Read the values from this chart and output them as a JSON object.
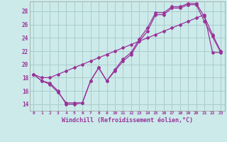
{
  "xlabel": "Windchill (Refroidissement éolien,°C)",
  "bg_color": "#cceaea",
  "grid_color": "#aacccc",
  "line_color": "#993399",
  "xlim": [
    -0.5,
    23.5
  ],
  "ylim": [
    13.0,
    29.5
  ],
  "yticks": [
    14,
    16,
    18,
    20,
    22,
    24,
    26,
    28
  ],
  "xticks": [
    0,
    1,
    2,
    3,
    4,
    5,
    6,
    7,
    8,
    9,
    10,
    11,
    12,
    13,
    14,
    15,
    16,
    17,
    18,
    19,
    20,
    21,
    22,
    23
  ],
  "series1_x": [
    0,
    1,
    2,
    3,
    4,
    5,
    6,
    7,
    8,
    9,
    10,
    11,
    12,
    13,
    14,
    15,
    16,
    17,
    18,
    19,
    20,
    21,
    22,
    23
  ],
  "series1_y": [
    18.5,
    17.5,
    17.0,
    15.8,
    14.2,
    14.2,
    14.2,
    17.5,
    19.5,
    17.5,
    19.0,
    20.5,
    21.5,
    23.5,
    25.0,
    27.5,
    27.5,
    28.5,
    28.5,
    29.0,
    29.0,
    26.5,
    24.2,
    21.8
  ],
  "series2_x": [
    0,
    1,
    2,
    3,
    4,
    5,
    6,
    7,
    8,
    9,
    10,
    11,
    12,
    13,
    14,
    15,
    16,
    17,
    18,
    19,
    20,
    21,
    22,
    23
  ],
  "series2_y": [
    18.5,
    17.5,
    17.2,
    16.0,
    14.0,
    14.0,
    14.2,
    17.5,
    19.5,
    17.5,
    19.2,
    20.8,
    21.8,
    23.8,
    25.5,
    27.8,
    27.8,
    28.7,
    28.7,
    29.2,
    29.2,
    27.2,
    24.5,
    22.0
  ],
  "series3_x": [
    0,
    1,
    2,
    3,
    4,
    5,
    6,
    7,
    8,
    9,
    10,
    11,
    12,
    13,
    14,
    15,
    16,
    17,
    18,
    19,
    20,
    21,
    22,
    23
  ],
  "series3_y": [
    18.5,
    18.0,
    18.0,
    18.5,
    19.0,
    19.5,
    20.0,
    20.5,
    21.0,
    21.5,
    22.0,
    22.5,
    23.0,
    23.5,
    24.0,
    24.5,
    25.0,
    25.5,
    26.0,
    26.5,
    27.0,
    27.5,
    21.8,
    21.8
  ]
}
